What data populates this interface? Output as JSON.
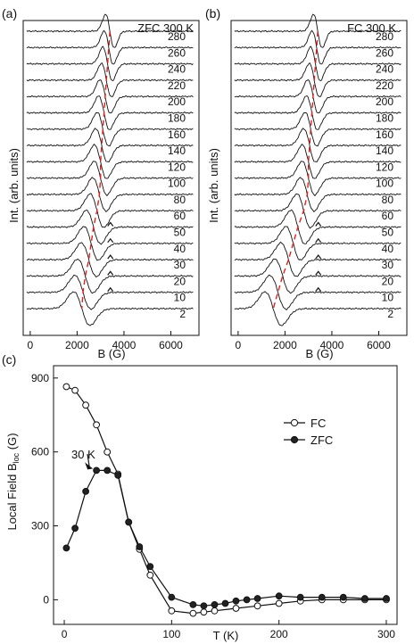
{
  "colors": {
    "line": "#111111",
    "marker": "#222222",
    "guide": "#e0201c",
    "background": "#ffffff"
  },
  "chart_data": [
    {
      "type": "line",
      "panel_label": "(a)",
      "panel_title": "ZFC 300 K",
      "xlabel": "B (G)",
      "ylabel": "Int. (arb. units)",
      "xlim": [
        -300,
        7200
      ],
      "xticks": [
        0,
        2000,
        4000,
        6000
      ],
      "xtick_labels": [
        "0",
        "2000",
        "4000",
        "6000"
      ],
      "trace_labels": [
        "280",
        "260",
        "240",
        "220",
        "200",
        "180",
        "160",
        "140",
        "120",
        "100",
        "80",
        "60",
        "50",
        "40",
        "30",
        "20",
        "10",
        "2"
      ],
      "resonance_field_by_trace": [
        3400,
        3350,
        3300,
        3250,
        3200,
        3150,
        3100,
        3050,
        3000,
        3000,
        2950,
        2850,
        2700,
        2600,
        2500,
        2350,
        2250,
        2200
      ],
      "guide_line": {
        "style": "dashed",
        "color": "red"
      }
    },
    {
      "type": "line",
      "panel_label": "(b)",
      "panel_title": "FC 300 K",
      "xlabel": "B (G)",
      "ylabel": "Int. (arb. units)",
      "xlim": [
        -300,
        7200
      ],
      "xticks": [
        0,
        2000,
        4000,
        6000
      ],
      "xtick_labels": [
        "0",
        "2000",
        "4000",
        "6000"
      ],
      "trace_labels": [
        "280",
        "260",
        "240",
        "220",
        "200",
        "180",
        "160",
        "140",
        "120",
        "100",
        "80",
        "60",
        "50",
        "40",
        "30",
        "20",
        "10",
        "2"
      ],
      "resonance_field_by_trace": [
        3400,
        3350,
        3300,
        3250,
        3200,
        3150,
        3100,
        3050,
        3000,
        3000,
        2950,
        2800,
        2550,
        2350,
        2150,
        1900,
        1700,
        1500
      ],
      "guide_line": {
        "style": "dashed",
        "color": "red"
      }
    },
    {
      "type": "line",
      "panel_label": "(c)",
      "xlabel": "T (K)",
      "ylabel": "Local Field B",
      "ylabel_sub": "loc",
      "ylabel_unit": " (G)",
      "xlim": [
        -10,
        310
      ],
      "ylim": [
        -100,
        950
      ],
      "xticks": [
        0,
        100,
        200,
        300
      ],
      "yticks": [
        0,
        300,
        600,
        900
      ],
      "legend_position": "right",
      "annotation": {
        "text": "30 K",
        "points_to": {
          "series": "ZFC",
          "x": 30,
          "y": 525
        }
      },
      "series": [
        {
          "name": "FC",
          "marker": "open-circle",
          "x": [
            2,
            10,
            20,
            30,
            40,
            50,
            60,
            70,
            80,
            100,
            120,
            130,
            140,
            160,
            180,
            200,
            220,
            240,
            260,
            280,
            300
          ],
          "y": [
            865,
            850,
            790,
            710,
            600,
            510,
            315,
            205,
            100,
            -45,
            -55,
            -50,
            -45,
            -35,
            -25,
            -15,
            -5,
            0,
            0,
            0,
            0
          ]
        },
        {
          "name": "ZFC",
          "marker": "filled-circle",
          "x": [
            2,
            10,
            20,
            30,
            40,
            50,
            60,
            70,
            80,
            100,
            120,
            130,
            140,
            150,
            160,
            170,
            180,
            200,
            220,
            240,
            260,
            280,
            300
          ],
          "y": [
            210,
            290,
            440,
            525,
            525,
            505,
            315,
            215,
            135,
            10,
            -20,
            -25,
            -20,
            -15,
            -5,
            0,
            5,
            15,
            10,
            10,
            10,
            5,
            5
          ]
        }
      ]
    }
  ]
}
